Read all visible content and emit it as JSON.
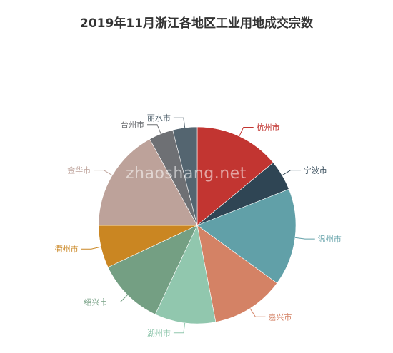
{
  "chart_data": {
    "type": "pie",
    "title": "2019年11月浙江各地区工业用地成交宗数",
    "slices": [
      {
        "label": "杭州市",
        "value": 14,
        "color": "#c23531"
      },
      {
        "label": "宁波市",
        "value": 5,
        "color": "#2f4554"
      },
      {
        "label": "温州市",
        "value": 16,
        "color": "#61a0a8"
      },
      {
        "label": "嘉兴市",
        "value": 12,
        "color": "#d48265"
      },
      {
        "label": "湖州市",
        "value": 10,
        "color": "#91c7ae"
      },
      {
        "label": "绍兴市",
        "value": 11,
        "color": "#749f83"
      },
      {
        "label": "衢州市",
        "value": 7,
        "color": "#ca8622"
      },
      {
        "label": "金华市",
        "value": 17,
        "color": "#bda29a"
      },
      {
        "label": "台州市",
        "value": 4,
        "color": "#6e7074"
      },
      {
        "label": "丽水市",
        "value": 4,
        "color": "#546570"
      }
    ]
  },
  "watermark": "zhaoshang.net"
}
